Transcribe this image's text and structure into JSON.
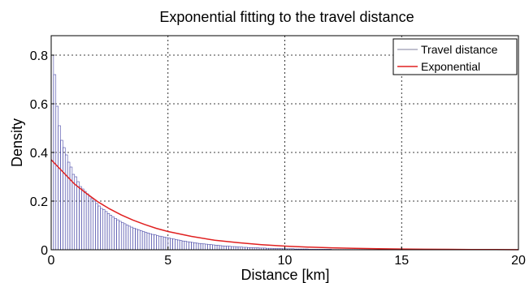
{
  "chart_data": {
    "type": "bar",
    "title": "Exponential fitting to the travel distance",
    "xlabel": "Distance [km]",
    "ylabel": "Density",
    "xlim": [
      0,
      20
    ],
    "ylim": [
      0,
      0.88
    ],
    "xticks": [
      "0",
      "5",
      "10",
      "15",
      "20"
    ],
    "yticks": [
      "0",
      "0.2",
      "0.4",
      "0.6",
      "0.8"
    ],
    "grid": true,
    "legend_position": "top-right",
    "series": [
      {
        "name": "Travel distance",
        "kind": "histogram",
        "color": "#4a4aa8",
        "bin_width": 0.1,
        "x_start": 0,
        "values": [
          0.8,
          0.72,
          0.59,
          0.51,
          0.45,
          0.42,
          0.39,
          0.36,
          0.34,
          0.31,
          0.3,
          0.28,
          0.26,
          0.25,
          0.24,
          0.23,
          0.22,
          0.21,
          0.2,
          0.19,
          0.18,
          0.17,
          0.165,
          0.157,
          0.149,
          0.142,
          0.135,
          0.129,
          0.123,
          0.117,
          0.112,
          0.107,
          0.102,
          0.097,
          0.093,
          0.089,
          0.085,
          0.081,
          0.078,
          0.075,
          0.072,
          0.069,
          0.066,
          0.063,
          0.061,
          0.058,
          0.056,
          0.054,
          0.052,
          0.05,
          0.048,
          0.046,
          0.044,
          0.042,
          0.04,
          0.038,
          0.036,
          0.035,
          0.033,
          0.032,
          0.03,
          0.029,
          0.027,
          0.026,
          0.025,
          0.024,
          0.023,
          0.022,
          0.021,
          0.02,
          0.019,
          0.018,
          0.017,
          0.016,
          0.015,
          0.015,
          0.014,
          0.013,
          0.013,
          0.012,
          0.011,
          0.011,
          0.01,
          0.01,
          0.009,
          0.009,
          0.008,
          0.008,
          0.008,
          0.007,
          0.007,
          0.007,
          0.006,
          0.006,
          0.006,
          0.005,
          0.005,
          0.005,
          0.005,
          0.004,
          0.004,
          0.004,
          0.004,
          0.004,
          0.003,
          0.003,
          0.003,
          0.003,
          0.003,
          0.003,
          0.002,
          0.002,
          0.002,
          0.002,
          0.002,
          0.002,
          0.002,
          0.002,
          0.002,
          0.002,
          0.001,
          0.001,
          0.001,
          0.001,
          0.001,
          0.001,
          0.001,
          0.001,
          0.001,
          0.001,
          0.001,
          0.001,
          0.001,
          0.001,
          0.001,
          0.001,
          0.001
        ]
      },
      {
        "name": "Exponential",
        "kind": "line",
        "color": "#e02020",
        "x": [
          0,
          0.5,
          1,
          1.5,
          2,
          2.5,
          3,
          3.5,
          4,
          4.5,
          5,
          6,
          7,
          8,
          9,
          10,
          11,
          12,
          13,
          14,
          15,
          16,
          17,
          18,
          19,
          20
        ],
        "values": [
          0.37,
          0.32,
          0.27,
          0.232,
          0.197,
          0.168,
          0.143,
          0.122,
          0.104,
          0.088,
          0.075,
          0.055,
          0.039,
          0.029,
          0.021,
          0.015,
          0.011,
          0.008,
          0.006,
          0.004,
          0.003,
          0.002,
          0.0015,
          0.001,
          0.0008,
          0.0006
        ]
      }
    ]
  }
}
